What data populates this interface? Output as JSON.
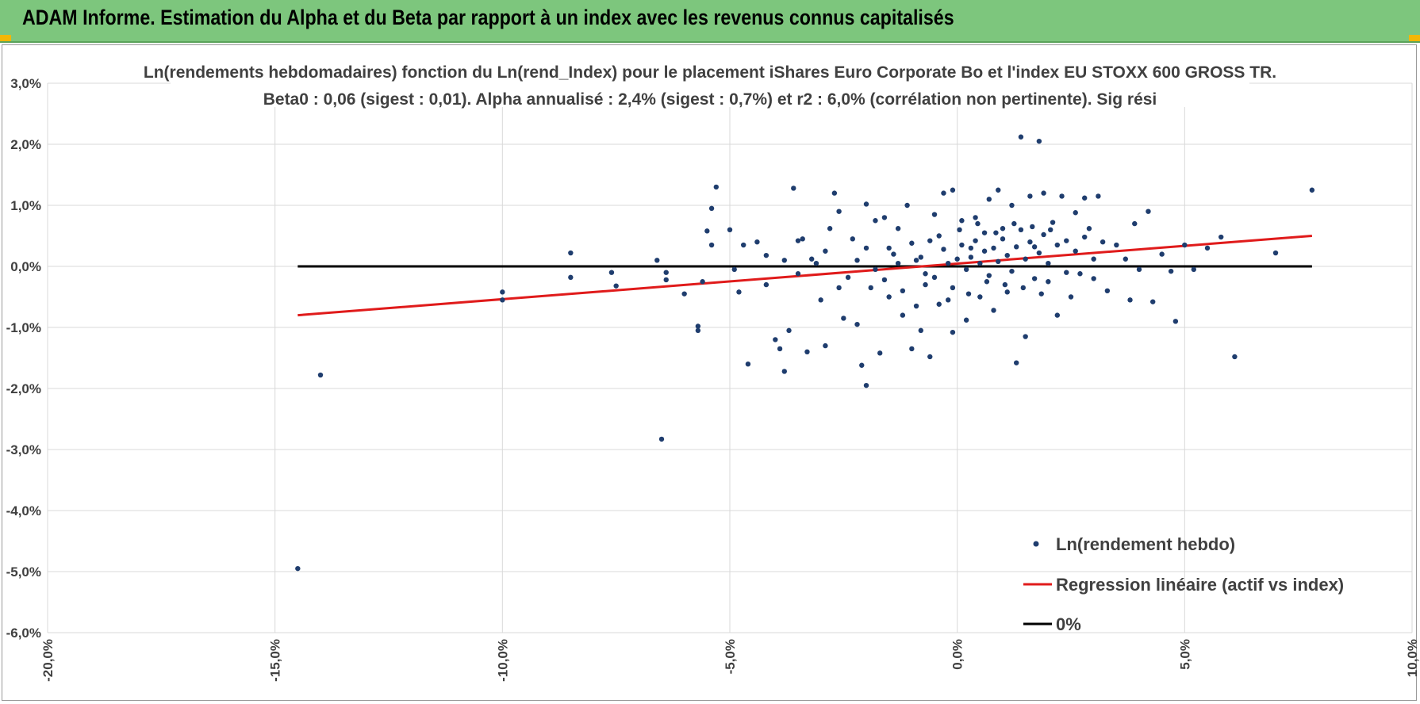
{
  "banner": {
    "title": "ADAM Informe. Estimation du Alpha et du Beta par rapport à un index avec les revenus connus capitalisés"
  },
  "colors": {
    "banner_bg": "#7dc67d",
    "corner_accent": "#f2b705",
    "scatter": "#1f3d6e",
    "regression": "#e01b1b",
    "zero_line": "#000000",
    "grid": "#d9d9d9"
  },
  "chart_data": {
    "type": "scatter",
    "title_lines": [
      "Ln(rendements hebdomadaires) fonction du Ln(rend_Index) pour le placement iShares Euro Corporate Bo et l'index EU STOXX  600 GROSS TR.",
      "Beta0 : 0,06 (sigest : 0,01).  Alpha annualisé : 2,4% (sigest : 0,7%) et r2 : 6,0% (corrélation non pertinente). Sig rési"
    ],
    "xlim": [
      -20,
      10
    ],
    "ylim": [
      -6,
      3
    ],
    "x_ticks": [
      -20,
      -15,
      -10,
      -5,
      0,
      5,
      10
    ],
    "x_tick_labels": [
      "-20,0%",
      "-15,0%",
      "-10,0%",
      "-5,0%",
      "0,0%",
      "5,0%",
      "10,0%"
    ],
    "y_ticks": [
      3,
      2,
      1,
      0,
      -1,
      -2,
      -3,
      -4,
      -5,
      -6
    ],
    "y_tick_labels": [
      "3,0%",
      "2,0%",
      "1,0%",
      "0,0%",
      "-1,0%",
      "-2,0%",
      "-3,0%",
      "-4,0%",
      "-5,0%",
      "-6,0%"
    ],
    "grid": true,
    "legend_position": "bottom-right",
    "series": [
      {
        "name": "Ln(rendement hebdo)",
        "kind": "scatter",
        "points": [
          [
            -14.5,
            -4.95
          ],
          [
            -14.0,
            -1.78
          ],
          [
            -10.0,
            -0.42
          ],
          [
            -10.0,
            -0.55
          ],
          [
            -8.5,
            0.22
          ],
          [
            -8.5,
            -0.18
          ],
          [
            -7.6,
            -0.1
          ],
          [
            -7.5,
            -0.32
          ],
          [
            -6.6,
            0.1
          ],
          [
            -6.5,
            -2.83
          ],
          [
            -6.4,
            -0.1
          ],
          [
            -6.4,
            -0.22
          ],
          [
            -6.0,
            -0.45
          ],
          [
            -5.7,
            -0.98
          ],
          [
            -5.7,
            -1.05
          ],
          [
            -5.6,
            -0.25
          ],
          [
            -5.5,
            0.58
          ],
          [
            -5.4,
            0.95
          ],
          [
            -5.4,
            0.35
          ],
          [
            -5.3,
            1.3
          ],
          [
            -5.0,
            0.6
          ],
          [
            -4.9,
            -0.05
          ],
          [
            -4.8,
            -0.42
          ],
          [
            -4.7,
            0.35
          ],
          [
            -4.6,
            -1.6
          ],
          [
            -4.4,
            0.4
          ],
          [
            -4.2,
            -0.3
          ],
          [
            -4.0,
            -1.2
          ],
          [
            -3.9,
            -1.35
          ],
          [
            -3.8,
            -1.72
          ],
          [
            -3.7,
            -1.05
          ],
          [
            -3.6,
            1.28
          ],
          [
            -3.5,
            0.42
          ],
          [
            -3.4,
            0.45
          ],
          [
            -3.3,
            -1.4
          ],
          [
            -3.2,
            0.12
          ],
          [
            -3.0,
            -0.55
          ],
          [
            -2.9,
            -1.3
          ],
          [
            -2.8,
            0.62
          ],
          [
            -2.7,
            1.2
          ],
          [
            -2.6,
            0.9
          ],
          [
            -2.5,
            -0.85
          ],
          [
            -2.3,
            0.45
          ],
          [
            -2.2,
            -0.95
          ],
          [
            -2.1,
            -1.62
          ],
          [
            -2.0,
            1.02
          ],
          [
            -2.0,
            -1.95
          ],
          [
            -1.9,
            -0.35
          ],
          [
            -1.8,
            0.75
          ],
          [
            -1.7,
            -1.42
          ],
          [
            -1.6,
            0.8
          ],
          [
            -1.5,
            -0.5
          ],
          [
            -1.4,
            0.2
          ],
          [
            -1.3,
            0.62
          ],
          [
            -1.2,
            -0.8
          ],
          [
            -1.1,
            1.0
          ],
          [
            -1.0,
            -1.35
          ],
          [
            -0.9,
            -0.65
          ],
          [
            -0.8,
            -1.05
          ],
          [
            -0.7,
            -0.12
          ],
          [
            -0.6,
            -1.48
          ],
          [
            -0.5,
            0.85
          ],
          [
            -0.4,
            -0.62
          ],
          [
            -0.3,
            1.2
          ],
          [
            -0.2,
            -0.55
          ],
          [
            -0.1,
            1.25
          ],
          [
            -0.1,
            -1.08
          ],
          [
            0.1,
            0.75
          ],
          [
            0.2,
            -0.88
          ],
          [
            0.3,
            0.3
          ],
          [
            0.4,
            0.8
          ],
          [
            0.5,
            -0.5
          ],
          [
            0.6,
            0.55
          ],
          [
            0.7,
            1.1
          ],
          [
            0.8,
            -0.72
          ],
          [
            0.9,
            1.25
          ],
          [
            1.0,
            0.62
          ],
          [
            1.1,
            -0.42
          ],
          [
            1.2,
            1.0
          ],
          [
            1.3,
            -1.58
          ],
          [
            1.4,
            2.12
          ],
          [
            1.5,
            -1.15
          ],
          [
            1.6,
            1.15
          ],
          [
            1.7,
            0.32
          ],
          [
            1.8,
            2.05
          ],
          [
            1.9,
            1.2
          ],
          [
            2.0,
            -0.25
          ],
          [
            2.1,
            0.72
          ],
          [
            2.2,
            -0.8
          ],
          [
            2.3,
            1.15
          ],
          [
            2.4,
            0.42
          ],
          [
            2.5,
            -0.5
          ],
          [
            2.6,
            0.88
          ],
          [
            2.7,
            -0.12
          ],
          [
            2.8,
            1.12
          ],
          [
            2.9,
            0.62
          ],
          [
            3.0,
            0.12
          ],
          [
            3.1,
            1.15
          ],
          [
            3.3,
            -0.4
          ],
          [
            3.5,
            0.35
          ],
          [
            3.7,
            0.12
          ],
          [
            3.8,
            -0.55
          ],
          [
            3.9,
            0.7
          ],
          [
            4.0,
            -0.05
          ],
          [
            4.2,
            0.9
          ],
          [
            4.3,
            -0.58
          ],
          [
            4.5,
            0.2
          ],
          [
            4.7,
            -0.08
          ],
          [
            4.8,
            -0.9
          ],
          [
            5.0,
            0.35
          ],
          [
            5.2,
            -0.05
          ],
          [
            5.5,
            0.3
          ],
          [
            5.8,
            0.48
          ],
          [
            6.1,
            -1.48
          ],
          [
            7.0,
            0.22
          ],
          [
            7.8,
            1.25
          ],
          [
            -4.2,
            0.18
          ],
          [
            -3.5,
            -0.12
          ],
          [
            -2.9,
            0.25
          ],
          [
            -2.4,
            -0.18
          ],
          [
            -2.0,
            0.3
          ],
          [
            -1.6,
            -0.22
          ],
          [
            -1.3,
            0.05
          ],
          [
            -1.0,
            0.38
          ],
          [
            -0.8,
            0.15
          ],
          [
            -0.6,
            0.42
          ],
          [
            -0.5,
            -0.18
          ],
          [
            -0.3,
            0.28
          ],
          [
            -0.2,
            0.05
          ],
          [
            0.0,
            0.12
          ],
          [
            0.1,
            0.35
          ],
          [
            0.2,
            -0.05
          ],
          [
            0.3,
            0.15
          ],
          [
            0.4,
            0.42
          ],
          [
            0.5,
            0.05
          ],
          [
            0.6,
            0.25
          ],
          [
            0.7,
            -0.15
          ],
          [
            0.8,
            0.3
          ],
          [
            0.9,
            0.08
          ],
          [
            1.0,
            0.45
          ],
          [
            1.1,
            0.18
          ],
          [
            1.2,
            -0.08
          ],
          [
            1.3,
            0.32
          ],
          [
            1.4,
            0.6
          ],
          [
            1.5,
            0.12
          ],
          [
            1.6,
            0.4
          ],
          [
            1.7,
            -0.2
          ],
          [
            1.8,
            0.22
          ],
          [
            1.9,
            0.52
          ],
          [
            2.0,
            0.05
          ],
          [
            2.2,
            0.35
          ],
          [
            2.4,
            -0.1
          ],
          [
            2.6,
            0.25
          ],
          [
            2.8,
            0.48
          ],
          [
            3.0,
            -0.2
          ],
          [
            3.2,
            0.4
          ],
          [
            -0.9,
            0.1
          ],
          [
            -0.7,
            -0.3
          ],
          [
            -0.4,
            0.5
          ],
          [
            -0.1,
            -0.35
          ],
          [
            0.05,
            0.6
          ],
          [
            0.25,
            -0.45
          ],
          [
            0.45,
            0.7
          ],
          [
            0.65,
            -0.25
          ],
          [
            0.85,
            0.55
          ],
          [
            1.05,
            -0.3
          ],
          [
            1.25,
            0.7
          ],
          [
            1.45,
            -0.35
          ],
          [
            1.65,
            0.65
          ],
          [
            1.85,
            -0.45
          ],
          [
            2.05,
            0.6
          ],
          [
            -1.2,
            -0.4
          ],
          [
            -1.5,
            0.3
          ],
          [
            -1.8,
            -0.05
          ],
          [
            -2.2,
            0.1
          ],
          [
            -2.6,
            -0.35
          ],
          [
            -3.1,
            0.05
          ],
          [
            -3.8,
            0.1
          ]
        ]
      },
      {
        "name": "Regression linéaire (actif vs index)",
        "kind": "line",
        "points": [
          [
            -14.5,
            -0.8
          ],
          [
            7.8,
            0.5
          ]
        ]
      },
      {
        "name": "0%",
        "kind": "line",
        "points": [
          [
            -14.5,
            0.0
          ],
          [
            7.8,
            0.0
          ]
        ]
      }
    ]
  }
}
